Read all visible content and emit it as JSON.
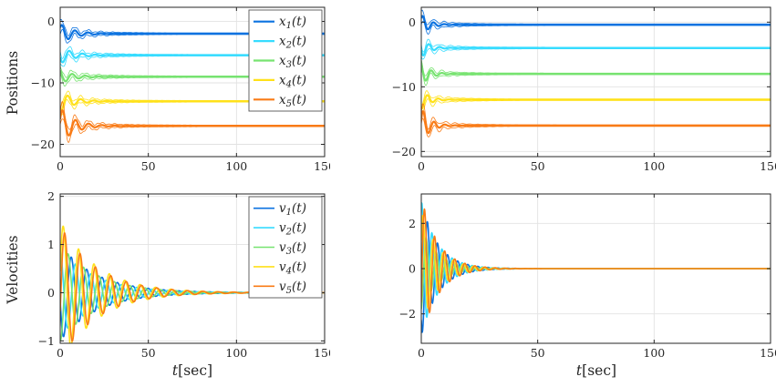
{
  "figure": {
    "bg": "#ffffff",
    "grid_color": "#e2e2e2",
    "axis_color": "#262626",
    "colors": [
      "#0b72e0",
      "#36dcff",
      "#77e370",
      "#ffe11a",
      "#f97b16"
    ]
  },
  "labels": {
    "positions_ylabel": "Positions",
    "velocities_ylabel": "Velocities",
    "xlabel_var": "t",
    "xlabel_rest": "[sec]"
  },
  "chart_data": [
    {
      "id": "positions-left",
      "type": "line",
      "ylabel": "Positions",
      "xlabel": "",
      "xlim": [
        0,
        150
      ],
      "ylim": [
        -22,
        2.3
      ],
      "xticks": [
        0,
        50,
        100,
        150
      ],
      "yticks": [
        0,
        -10,
        -20
      ],
      "grid": true,
      "legend_position": "top-right",
      "fn": "cos",
      "freq": 0.85,
      "decay": 0.13,
      "env_decay": 0.06,
      "line_width": 2.2,
      "legend": [
        {
          "var": "x",
          "sub": "1",
          "suffix": "(t)"
        },
        {
          "var": "x",
          "sub": "2",
          "suffix": "(t)"
        },
        {
          "var": "x",
          "sub": "3",
          "suffix": "(t)"
        },
        {
          "var": "x",
          "sub": "4",
          "suffix": "(t)"
        },
        {
          "var": "x",
          "sub": "5",
          "suffix": "(t)"
        }
      ],
      "series": [
        {
          "name": "x1(t)",
          "color": 0,
          "final": -2,
          "amp": 1.6,
          "phase": -0.9,
          "env": 1.0
        },
        {
          "name": "x2(t)",
          "color": 1,
          "final": -5.5,
          "amp": 1.4,
          "phase": 1.8,
          "env": 1.0
        },
        {
          "name": "x3(t)",
          "color": 2,
          "final": -9,
          "amp": 1.1,
          "phase": 0.4,
          "env": 0.9
        },
        {
          "name": "x4(t)",
          "color": 3,
          "final": -13,
          "amp": 1.6,
          "phase": 2.6,
          "env": 1.0
        },
        {
          "name": "x5(t)",
          "color": 4,
          "final": -17,
          "amp": 3.0,
          "phase": -1.2,
          "env": 1.4
        }
      ]
    },
    {
      "id": "positions-right",
      "type": "line",
      "ylabel": "",
      "xlabel": "",
      "xlim": [
        0,
        150
      ],
      "ylim": [
        -20.8,
        2.3
      ],
      "xticks": [
        0,
        50,
        100,
        150
      ],
      "yticks": [
        0,
        -10,
        -20
      ],
      "grid": true,
      "legend_position": null,
      "fn": "cos",
      "freq": 1.35,
      "decay": 0.28,
      "env_decay": 0.1,
      "line_width": 2.2,
      "legend": null,
      "series": [
        {
          "name": "x1(t)",
          "color": 0,
          "final": -0.4,
          "amp": 1.6,
          "phase": -0.9,
          "env": 0.9
        },
        {
          "name": "x2(t)",
          "color": 1,
          "final": -4,
          "amp": 1.5,
          "phase": 1.8,
          "env": 0.9
        },
        {
          "name": "x3(t)",
          "color": 2,
          "final": -8,
          "amp": 1.8,
          "phase": 0.4,
          "env": 0.8
        },
        {
          "name": "x4(t)",
          "color": 3,
          "final": -12,
          "amp": 1.5,
          "phase": 2.6,
          "env": 0.9
        },
        {
          "name": "x5(t)",
          "color": 4,
          "final": -16,
          "amp": 2.8,
          "phase": -1.2,
          "env": 1.2
        }
      ]
    },
    {
      "id": "velocities-left",
      "type": "line",
      "ylabel": "Velocities",
      "xlabel": "t[sec]",
      "xlim": [
        0,
        150
      ],
      "ylim": [
        -1.05,
        2.05
      ],
      "xticks": [
        0,
        50,
        100,
        150
      ],
      "yticks": [
        2,
        1,
        0,
        -1
      ],
      "grid": true,
      "legend_position": "top-right",
      "fn": "sin",
      "freq": 0.72,
      "decay": 0.048,
      "env_decay": 0,
      "line_width": 1.6,
      "legend": [
        {
          "var": "v",
          "sub": "1",
          "suffix": "(t)"
        },
        {
          "var": "v",
          "sub": "2",
          "suffix": "(t)"
        },
        {
          "var": "v",
          "sub": "3",
          "suffix": "(t)"
        },
        {
          "var": "v",
          "sub": "4",
          "suffix": "(t)"
        },
        {
          "var": "v",
          "sub": "5",
          "suffix": "(t)"
        }
      ],
      "series": [
        {
          "name": "v1(t)",
          "color": 0,
          "final": 0,
          "amp": 1.0,
          "phase": 3.3
        },
        {
          "name": "v2(t)",
          "color": 1,
          "final": 0,
          "amp": 0.9,
          "phase": 1.6
        },
        {
          "name": "v3(t)",
          "color": 2,
          "final": 0,
          "amp": 1.0,
          "phase": 4.6
        },
        {
          "name": "v4(t)",
          "color": 3,
          "final": 0,
          "amp": 1.5,
          "phase": 0.3
        },
        {
          "name": "v5(t)",
          "color": 4,
          "final": 0,
          "amp": 1.4,
          "phase": 6.0
        }
      ]
    },
    {
      "id": "velocities-right",
      "type": "line",
      "ylabel": "",
      "xlabel": "t[sec]",
      "xlim": [
        0,
        150
      ],
      "ylim": [
        -3.3,
        3.3
      ],
      "xticks": [
        0,
        50,
        100,
        150
      ],
      "yticks": [
        2,
        0,
        -2
      ],
      "grid": true,
      "legend_position": null,
      "fn": "sin",
      "freq": 1.45,
      "decay": 0.14,
      "env_decay": 0,
      "line_width": 1.6,
      "legend": null,
      "series": [
        {
          "name": "v1(t)",
          "color": 0,
          "final": 0,
          "amp": 3.0,
          "phase": 4.0
        },
        {
          "name": "v2(t)",
          "color": 1,
          "final": 0,
          "amp": 3.0,
          "phase": 1.2
        },
        {
          "name": "v3(t)",
          "color": 2,
          "final": 0,
          "amp": 1.8,
          "phase": 4.8
        },
        {
          "name": "v4(t)",
          "color": 3,
          "final": 0,
          "amp": 2.6,
          "phase": 0.5
        },
        {
          "name": "v5(t)",
          "color": 4,
          "final": 0,
          "amp": 3.2,
          "phase": 5.8
        }
      ]
    }
  ]
}
